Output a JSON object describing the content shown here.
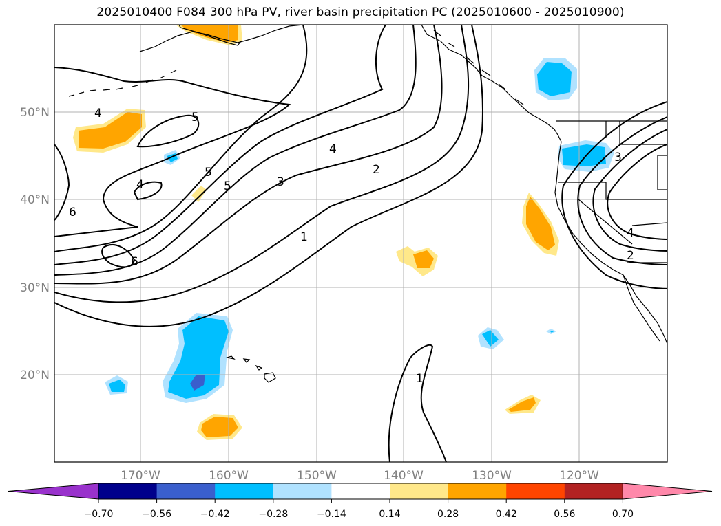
{
  "title": "2025010400 F084 300 hPa PV, river basin precipitation PC (2025010600 - 2025010900)",
  "latitude_labels": [
    "50°N",
    "40°N",
    "30°N",
    "20°N"
  ],
  "longitude_labels": [
    "170°W",
    "160°W",
    "150°W",
    "140°W",
    "130°W",
    "120°W"
  ],
  "pv_contour_labels": [
    "4",
    "5",
    "5",
    "5",
    "4",
    "4",
    "3",
    "2",
    "1",
    "6",
    "6",
    "1",
    "3",
    "4",
    "2"
  ],
  "colorbar": {
    "tick_labels": [
      "−0.70",
      "−0.56",
      "−0.42",
      "−0.28",
      "−0.14",
      "0.14",
      "0.28",
      "0.42",
      "0.56",
      "0.70"
    ],
    "colors": [
      "#9932cc",
      "#00008b",
      "#3a5fcd",
      "#00bfff",
      "#b0e2ff",
      "#ffffff",
      "#ffe88a",
      "#ffa500",
      "#ff4500",
      "#b22222",
      "#ff88aa"
    ]
  },
  "colors": {
    "neg_light": "#b0e2ff",
    "neg_mid": "#00bfff",
    "neg_dark": "#3a5fcd",
    "pos_light": "#ffe88a",
    "pos_mid": "#ffa500",
    "gridline": "#b0b0b0",
    "label_gray": "#808080"
  }
}
